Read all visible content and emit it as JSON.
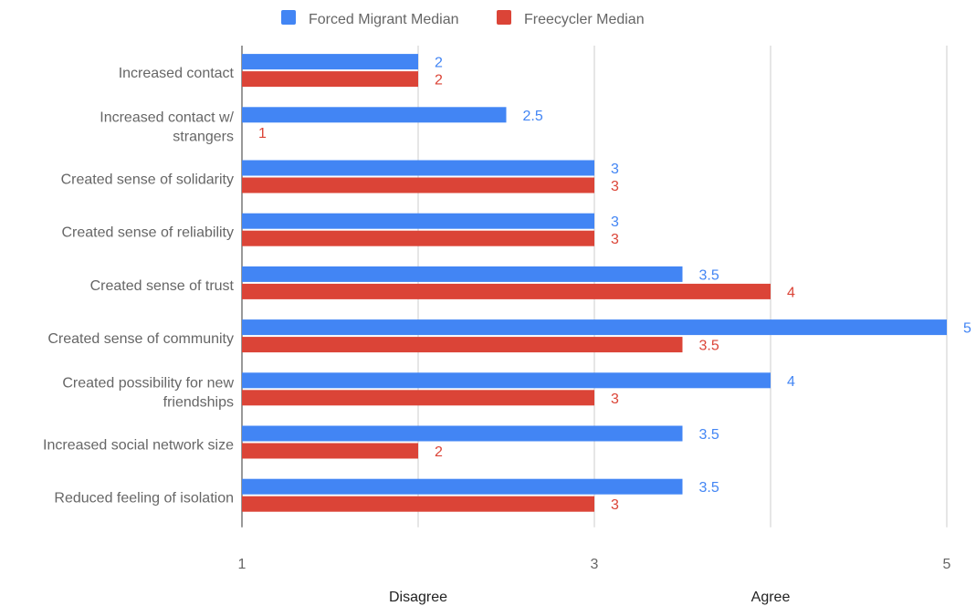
{
  "chart_data": {
    "type": "bar",
    "orientation": "horizontal",
    "categories": [
      "Increased contact",
      "Increased contact w/ strangers",
      "Created sense of solidarity",
      "Created sense of reliability",
      "Created sense of trust",
      "Created sense of community",
      "Created possibility for new friendships",
      "Increased social network size",
      "Reduced feeling of isolation"
    ],
    "series": [
      {
        "name": "Forced Migrant Median",
        "color": "#4285f4",
        "values": [
          2,
          2.5,
          3,
          3,
          3.5,
          5,
          4,
          3.5,
          3.5
        ]
      },
      {
        "name": "Freecycler Median",
        "color": "#db4437",
        "values": [
          2,
          1,
          3,
          3,
          4,
          3.5,
          3,
          2,
          3
        ]
      }
    ],
    "xlim": [
      1,
      5
    ],
    "x_ticks": [
      "1",
      "3",
      "5"
    ],
    "x_gridlines": [
      1,
      2,
      3,
      4,
      5
    ],
    "x_anchor_labels": [
      {
        "text": "Disagree",
        "value": 2
      },
      {
        "text": "Agree",
        "value": 4
      }
    ],
    "legend_position": "top",
    "data_labels": true,
    "grid": true
  }
}
